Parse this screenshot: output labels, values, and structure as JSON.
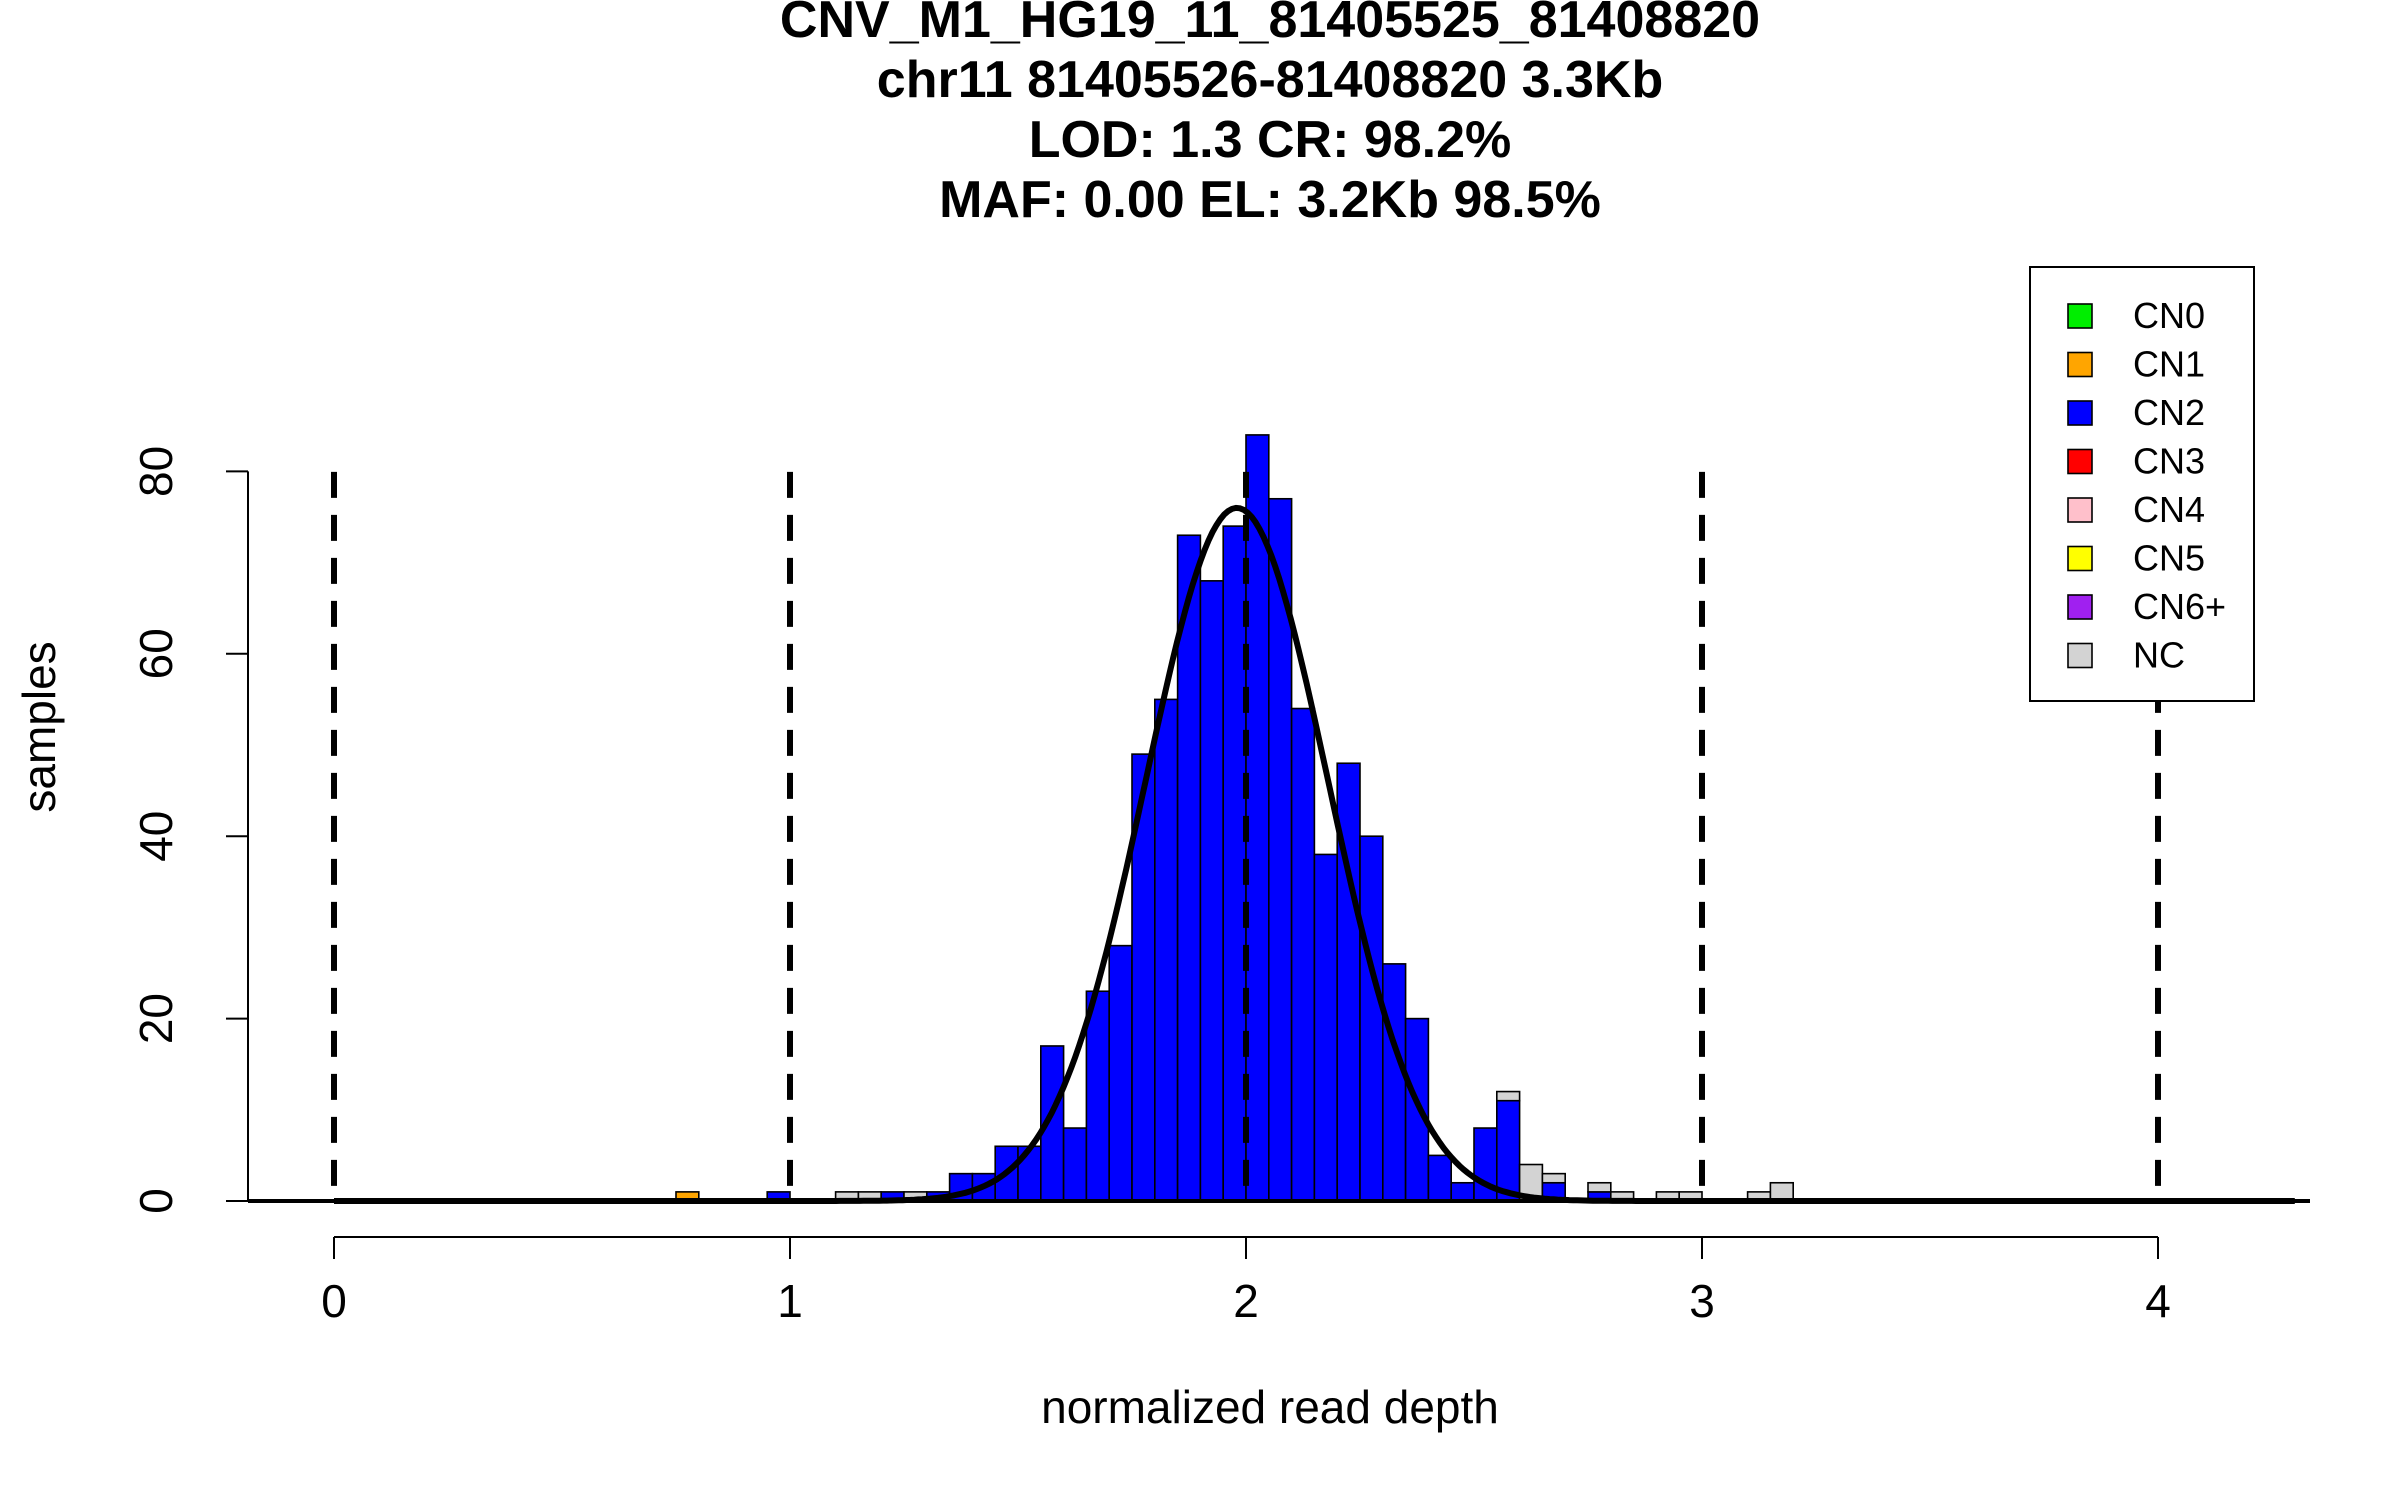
{
  "chart_data": {
    "type": "bar",
    "title_lines": [
      "CNV_M1_HG19_11_81405525_81408820",
      "chr11 81405526-81408820 3.3Kb",
      "LOD: 1.3 CR: 98.2%",
      "MAF: 0.00 EL: 3.2Kb 98.5%"
    ],
    "xlabel": "normalized read depth",
    "ylabel": "samples",
    "xlim": [
      -0.19,
      4.3
    ],
    "ylim": [
      0,
      84
    ],
    "x_ticks": [
      0,
      1,
      2,
      3,
      4
    ],
    "x_tick_labels": [
      "0",
      "1",
      "2",
      "3",
      "4"
    ],
    "y_ticks": [
      0,
      20,
      40,
      60,
      80
    ],
    "y_tick_labels": [
      "0",
      "20",
      "40",
      "60",
      "80"
    ],
    "vlines": [
      0,
      1,
      2,
      3,
      4
    ],
    "bin_width": 0.05,
    "bins": [
      {
        "x0": 0.75,
        "cn": "CN1",
        "value": 1
      },
      {
        "x0": 0.95,
        "cn": "CN2",
        "value": 1
      },
      {
        "x0": 1.1,
        "cn": "NC",
        "value": 1
      },
      {
        "x0": 1.15,
        "cn": "NC",
        "value": 1
      },
      {
        "x0": 1.2,
        "cn": "CN2",
        "value": 1
      },
      {
        "x0": 1.25,
        "cn": "NC",
        "value": 1
      },
      {
        "x0": 1.3,
        "cn": "CN2",
        "value": 1
      },
      {
        "x0": 1.35,
        "cn": "CN2",
        "value": 3
      },
      {
        "x0": 1.4,
        "cn": "CN2",
        "value": 3
      },
      {
        "x0": 1.45,
        "cn": "CN2",
        "value": 6
      },
      {
        "x0": 1.5,
        "cn": "CN2",
        "value": 6
      },
      {
        "x0": 1.55,
        "cn": "CN2",
        "value": 17
      },
      {
        "x0": 1.6,
        "cn": "CN2",
        "value": 8
      },
      {
        "x0": 1.65,
        "cn": "CN2",
        "value": 23
      },
      {
        "x0": 1.7,
        "cn": "CN2",
        "value": 28
      },
      {
        "x0": 1.75,
        "cn": "CN2",
        "value": 49
      },
      {
        "x0": 1.8,
        "cn": "CN2",
        "value": 55
      },
      {
        "x0": 1.85,
        "cn": "CN2",
        "value": 73
      },
      {
        "x0": 1.9,
        "cn": "CN2",
        "value": 68
      },
      {
        "x0": 1.95,
        "cn": "CN2",
        "value": 74
      },
      {
        "x0": 2.0,
        "cn": "CN2",
        "value": 84
      },
      {
        "x0": 2.05,
        "cn": "CN2",
        "value": 77
      },
      {
        "x0": 2.1,
        "cn": "CN2",
        "value": 54
      },
      {
        "x0": 2.15,
        "cn": "CN2",
        "value": 38
      },
      {
        "x0": 2.2,
        "cn": "CN2",
        "value": 48
      },
      {
        "x0": 2.25,
        "cn": "CN2",
        "value": 40
      },
      {
        "x0": 2.3,
        "cn": "CN2",
        "value": 26
      },
      {
        "x0": 2.35,
        "cn": "CN2",
        "value": 20
      },
      {
        "x0": 2.4,
        "cn": "CN2",
        "value": 5
      },
      {
        "x0": 2.45,
        "cn": "CN2",
        "value": 2
      },
      {
        "x0": 2.5,
        "cn": "CN2",
        "value": 8
      },
      {
        "x0": 2.55,
        "cn": "CN2",
        "value": 11
      },
      {
        "x0": 2.55,
        "cn": "NC",
        "value": 1,
        "stack_base": 11
      },
      {
        "x0": 2.6,
        "cn": "NC",
        "value": 4
      },
      {
        "x0": 2.65,
        "cn": "CN2",
        "value": 2
      },
      {
        "x0": 2.65,
        "cn": "NC",
        "value": 1,
        "stack_base": 2
      },
      {
        "x0": 2.75,
        "cn": "CN2",
        "value": 1
      },
      {
        "x0": 2.75,
        "cn": "NC",
        "value": 1,
        "stack_base": 1
      },
      {
        "x0": 2.8,
        "cn": "NC",
        "value": 1
      },
      {
        "x0": 2.9,
        "cn": "NC",
        "value": 1
      },
      {
        "x0": 2.95,
        "cn": "NC",
        "value": 1
      },
      {
        "x0": 3.1,
        "cn": "NC",
        "value": 1
      },
      {
        "x0": 3.15,
        "cn": "NC",
        "value": 2
      }
    ],
    "fit_curve": {
      "type": "normal",
      "mean": 1.98,
      "sd": 0.2,
      "peak": 76
    },
    "legend_position": "top-right",
    "legend": [
      {
        "label": "CN0",
        "color": "#00ee00"
      },
      {
        "label": "CN1",
        "color": "#ffa500"
      },
      {
        "label": "CN2",
        "color": "#0000ff"
      },
      {
        "label": "CN3",
        "color": "#ff0000"
      },
      {
        "label": "CN4",
        "color": "#ffc0cb"
      },
      {
        "label": "CN5",
        "color": "#ffff00"
      },
      {
        "label": "CN6+",
        "color": "#a020f0"
      },
      {
        "label": "NC",
        "color": "#d3d3d3"
      }
    ]
  }
}
